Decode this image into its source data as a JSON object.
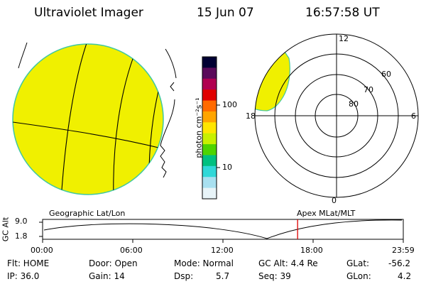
{
  "header": {
    "instrument": "Ultraviolet Imager",
    "date": "15 Jun 07",
    "time": "16:57:58 UT"
  },
  "colorbar": {
    "unit_label": "photon cm⁻²s⁻¹",
    "ticks": [
      "100",
      "10"
    ],
    "scale": "log",
    "colors": [
      "#000033",
      "#5a0a5a",
      "#b00050",
      "#e00000",
      "#ff6a00",
      "#ffa500",
      "#ffe600",
      "#c8f000",
      "#4ed400",
      "#00c080",
      "#30d8d8",
      "#a8e0f0",
      "#e8f4f8"
    ]
  },
  "polar_plot": {
    "mlt_labels": [
      "12",
      "18",
      "6",
      "0"
    ],
    "lat_labels": [
      "60",
      "70",
      "80"
    ]
  },
  "alt_plot": {
    "ylabel": "GC Alt",
    "yticks": [
      "9.0",
      "1.8"
    ],
    "left_label": "Geographic Lat/Lon",
    "right_label": "Apex MLat/MLT",
    "xticks": [
      "00:00",
      "06:00",
      "12:00",
      "18:00",
      "23:59"
    ],
    "current_time_fraction": 0.707,
    "marker_color": "#dd0000"
  },
  "info": {
    "flt": "Flt: HOME",
    "ip": "IP: 36.0",
    "door": "Door: Open",
    "gain": "Gain: 14",
    "mode": "Mode: Normal",
    "dsp_label": "Dsp:",
    "dsp_value": "5.7",
    "gc_alt": "GC Alt: 4.4 Re",
    "seq": "Seq: 39",
    "glat_label": "GLat:",
    "glat_value": "-56.2",
    "glon_label": "GLon:",
    "glon_value": "4.2"
  },
  "image_color": "#f0f000",
  "edge_color": "#40c8a0"
}
